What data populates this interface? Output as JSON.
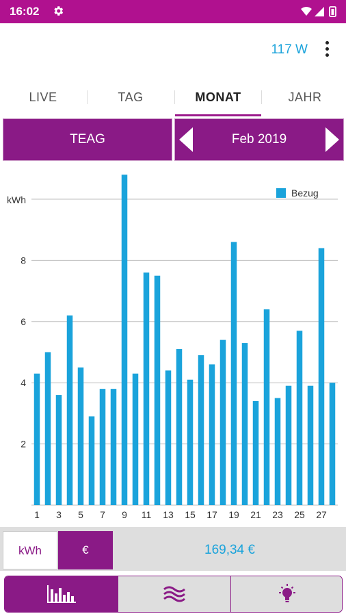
{
  "status_bar": {
    "time": "16:02",
    "icons": [
      "gear-icon",
      "wifi-icon",
      "signal-icon",
      "battery-icon"
    ]
  },
  "app_bar": {
    "power_reading": "117 W",
    "menu_icon": "more-vert-icon"
  },
  "tabs": [
    {
      "label": "LIVE",
      "active": false
    },
    {
      "label": "TAG",
      "active": false
    },
    {
      "label": "MONAT",
      "active": true
    },
    {
      "label": "JAHR",
      "active": false
    }
  ],
  "selector": {
    "provider": "TEAG",
    "period": "Feb 2019",
    "prev_icon": "chevron-left-icon",
    "next_icon": "chevron-right-icon"
  },
  "chart_data": {
    "type": "bar",
    "ylabel": "kWh",
    "ylim": [
      0,
      10.8
    ],
    "yticks": [
      2,
      4,
      6,
      8
    ],
    "grid": true,
    "legend_position": "top-right",
    "color": "#1aa3db",
    "x_tick_labels": [
      "1",
      "3",
      "5",
      "7",
      "9",
      "11",
      "13",
      "15",
      "17",
      "19",
      "21",
      "23",
      "25",
      "27"
    ],
    "categories": [
      "1",
      "2",
      "3",
      "4",
      "5",
      "6",
      "7",
      "8",
      "9",
      "10",
      "11",
      "12",
      "13",
      "14",
      "15",
      "16",
      "17",
      "18",
      "19",
      "20",
      "21",
      "22",
      "23",
      "24",
      "25",
      "26",
      "27",
      "28"
    ],
    "series": [
      {
        "name": "Bezug",
        "values": [
          4.3,
          5.0,
          3.6,
          6.2,
          4.5,
          2.9,
          3.8,
          3.8,
          10.8,
          4.3,
          7.6,
          7.5,
          4.4,
          5.1,
          4.1,
          4.9,
          4.6,
          5.4,
          8.6,
          5.3,
          3.4,
          6.4,
          3.5,
          3.9,
          5.7,
          3.9,
          8.4,
          4.0
        ]
      }
    ]
  },
  "summary": {
    "unit_kwh": "kWh",
    "unit_eur": "€",
    "active_unit": "€",
    "total": "169,34 €"
  },
  "bottom_nav": [
    {
      "icon": "bar-chart-icon",
      "active": true
    },
    {
      "icon": "wave-icon",
      "active": false
    },
    {
      "icon": "lightbulb-icon",
      "active": false
    }
  ]
}
